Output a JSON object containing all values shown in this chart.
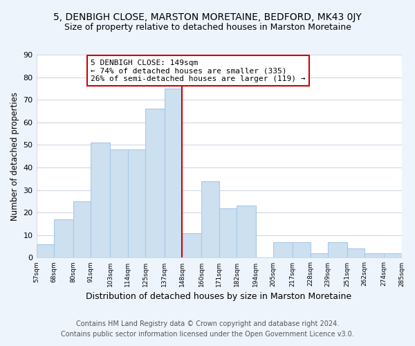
{
  "title": "5, DENBIGH CLOSE, MARSTON MORETAINE, BEDFORD, MK43 0JY",
  "subtitle": "Size of property relative to detached houses in Marston Moretaine",
  "xlabel": "Distribution of detached houses by size in Marston Moretaine",
  "ylabel": "Number of detached properties",
  "bar_edges": [
    57,
    68,
    80,
    91,
    103,
    114,
    125,
    137,
    148,
    160,
    171,
    182,
    194,
    205,
    217,
    228,
    239,
    251,
    262,
    274,
    285
  ],
  "bar_heights": [
    6,
    17,
    25,
    51,
    48,
    48,
    66,
    75,
    11,
    34,
    22,
    23,
    0,
    7,
    7,
    2,
    7,
    4,
    2,
    2
  ],
  "bar_color": "#cce0f0",
  "bar_edgecolor": "#a8c8e8",
  "reference_line_x": 148,
  "reference_line_color": "#cc0000",
  "ylim": [
    0,
    90
  ],
  "yticks": [
    0,
    10,
    20,
    30,
    40,
    50,
    60,
    70,
    80,
    90
  ],
  "tick_labels": [
    "57sqm",
    "68sqm",
    "80sqm",
    "91sqm",
    "103sqm",
    "114sqm",
    "125sqm",
    "137sqm",
    "148sqm",
    "160sqm",
    "171sqm",
    "182sqm",
    "194sqm",
    "205sqm",
    "217sqm",
    "228sqm",
    "239sqm",
    "251sqm",
    "262sqm",
    "274sqm",
    "285sqm"
  ],
  "annotation_title": "5 DENBIGH CLOSE: 149sqm",
  "annotation_line1": "← 74% of detached houses are smaller (335)",
  "annotation_line2": "26% of semi-detached houses are larger (119) →",
  "annotation_box_color": "#ffffff",
  "annotation_box_edgecolor": "#cc0000",
  "footer_line1": "Contains HM Land Registry data © Crown copyright and database right 2024.",
  "footer_line2": "Contains public sector information licensed under the Open Government Licence v3.0.",
  "background_color": "#eef4fc",
  "plot_background_color": "#ffffff",
  "title_fontsize": 10,
  "subtitle_fontsize": 9,
  "xlabel_fontsize": 9,
  "ylabel_fontsize": 8.5,
  "annotation_fontsize": 8,
  "footer_fontsize": 7,
  "grid_color": "#d0d8e8"
}
